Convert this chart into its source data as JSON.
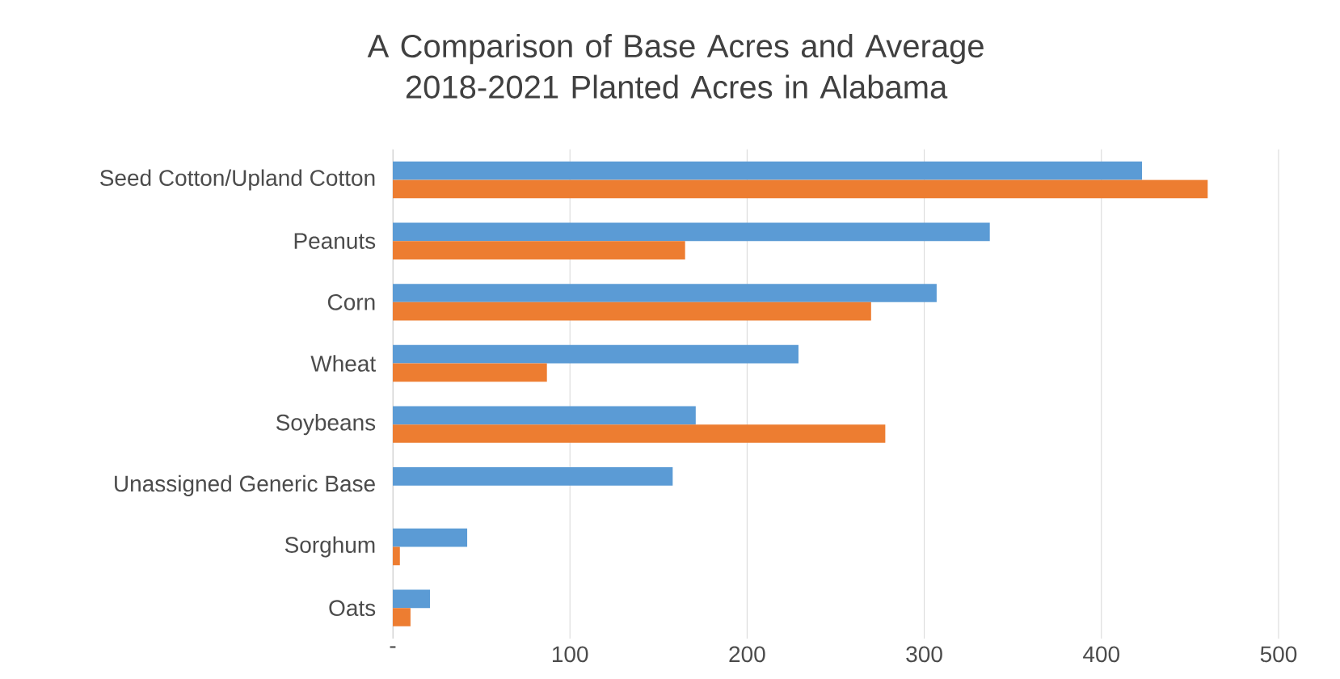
{
  "chart_data": {
    "type": "bar",
    "orientation": "horizontal",
    "title": "A Comparison of Base Acres and Average 2018-2021 Planted Acres in Alabama",
    "categories": [
      "Seed Cotton/Upland Cotton",
      "Peanuts",
      "Corn",
      "Wheat",
      "Soybeans",
      "Unassigned Generic Base",
      "Sorghum",
      "Oats"
    ],
    "series": [
      {
        "color": "#5b9bd5",
        "values": [
          423,
          337,
          307,
          229,
          171,
          158,
          42,
          21
        ]
      },
      {
        "color": "#ed7d31",
        "values": [
          460,
          165,
          270,
          87,
          278,
          null,
          4,
          10
        ]
      }
    ],
    "xlim": [
      0,
      500
    ],
    "xticks": [
      {
        "value": 0,
        "label": "-"
      },
      100,
      200,
      300,
      400,
      500
    ],
    "grid": "x"
  }
}
